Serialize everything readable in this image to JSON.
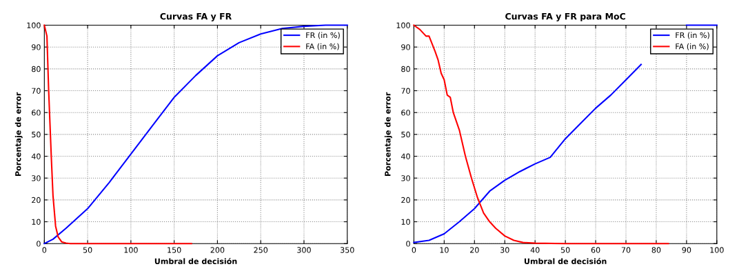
{
  "chart_data": [
    {
      "type": "line",
      "title": "Curvas FA y FR",
      "xlabel": "Umbral de decisión",
      "ylabel": "Porcentaje de error",
      "xlim": [
        0,
        350
      ],
      "ylim": [
        0,
        100
      ],
      "xticks": [
        0,
        50,
        100,
        150,
        200,
        250,
        300,
        350
      ],
      "yticks": [
        0,
        10,
        20,
        30,
        40,
        50,
        60,
        70,
        80,
        90,
        100
      ],
      "grid": true,
      "legend": "top right",
      "series": [
        {
          "name": "FR (in %)",
          "color": "#0000ff",
          "x": [
            0,
            10,
            25,
            50,
            75,
            100,
            125,
            150,
            175,
            200,
            225,
            250,
            275,
            300,
            325,
            350
          ],
          "values": [
            0,
            2,
            7,
            16,
            28,
            41,
            54,
            67,
            77,
            86,
            92,
            96,
            98.5,
            99.5,
            100,
            100
          ]
        },
        {
          "name": "FA (in %)",
          "color": "#ff0000",
          "x": [
            0,
            3,
            5,
            8,
            10,
            13,
            16,
            20,
            25,
            30,
            170
          ],
          "values": [
            100,
            95,
            70,
            40,
            22,
            8,
            3,
            0.8,
            0.2,
            0,
            0
          ]
        }
      ]
    },
    {
      "type": "line",
      "title": "Curvas FA y FR para MoC",
      "xlabel": "Umbral de decisión",
      "ylabel": "Porcentaje de error",
      "xlim": [
        0,
        100
      ],
      "ylim": [
        0,
        100
      ],
      "xticks": [
        0,
        10,
        20,
        30,
        40,
        50,
        60,
        70,
        80,
        90,
        100
      ],
      "yticks": [
        0,
        10,
        20,
        30,
        40,
        50,
        60,
        70,
        80,
        90,
        100
      ],
      "grid": true,
      "legend": "top right",
      "series": [
        {
          "name": "FR (in %)",
          "color": "#0000ff",
          "x": [
            0,
            5,
            10,
            15,
            20,
            25,
            30,
            35,
            40,
            45,
            50,
            55,
            60,
            65,
            70,
            75,
            80,
            85,
            90,
            100
          ],
          "values": [
            0.5,
            1.5,
            4.5,
            10,
            16,
            24,
            29,
            33,
            36.5,
            39.5,
            48,
            55,
            62,
            68,
            75,
            82,
            null,
            null,
            100,
            100
          ]
        },
        {
          "name": "FA (in %)",
          "color": "#ff0000",
          "x": [
            0,
            2,
            4,
            5,
            7,
            8,
            9,
            10,
            11,
            12,
            13,
            15,
            17,
            19,
            21,
            23,
            25,
            27,
            30,
            33,
            36,
            40,
            50,
            84
          ],
          "values": [
            100,
            98,
            95,
            95,
            88,
            84,
            78,
            75,
            68,
            67,
            60,
            52,
            40,
            30,
            21,
            14,
            10,
            7,
            3.5,
            1.5,
            0.5,
            0.2,
            0,
            0
          ]
        }
      ]
    }
  ]
}
